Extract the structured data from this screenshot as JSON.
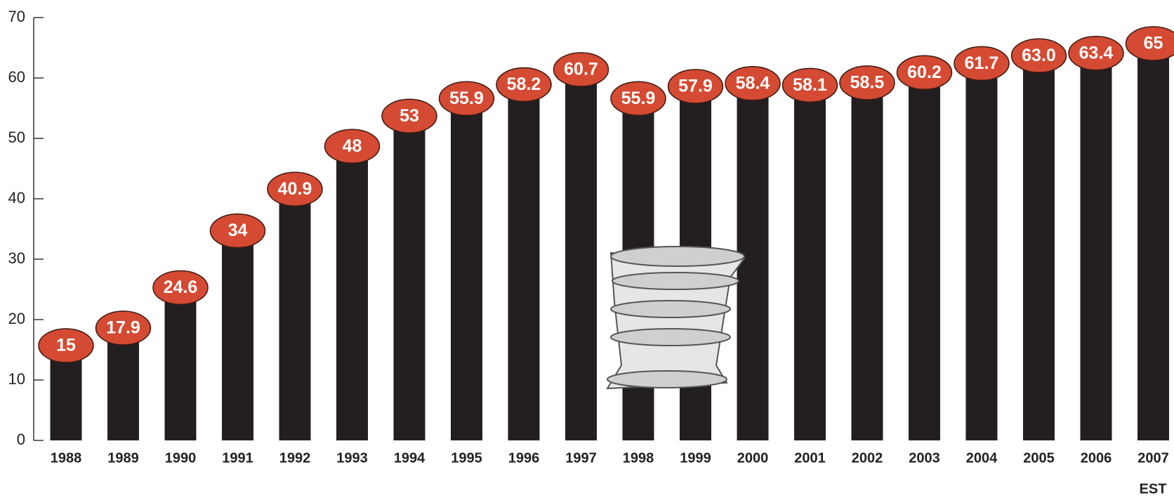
{
  "chart_data": {
    "type": "bar",
    "categories": [
      "1988",
      "1989",
      "1990",
      "1991",
      "1992",
      "1993",
      "1994",
      "1995",
      "1996",
      "1997",
      "1998",
      "1999",
      "2000",
      "2001",
      "2002",
      "2003",
      "2004",
      "2005",
      "2006",
      "2007"
    ],
    "values": [
      15,
      17.9,
      24.6,
      34,
      40.9,
      48,
      53,
      55.9,
      58.2,
      60.7,
      55.9,
      57.9,
      58.4,
      58.1,
      58.5,
      60.2,
      61.7,
      63.0,
      63.4,
      65
    ],
    "value_labels": [
      "15",
      "17.9",
      "24.6",
      "34",
      "40.9",
      "48",
      "53",
      "55.9",
      "58.2",
      "60.7",
      "55.9",
      "57.9",
      "58.4",
      "58.1",
      "58.5",
      "60.2",
      "61.7",
      "63.0",
      "63.4",
      "65"
    ],
    "annotation": "EST",
    "color": "#231f20",
    "label_color": "#d44a32",
    "ylim": [
      0,
      70
    ],
    "yticks": [
      0,
      10,
      20,
      30,
      40,
      50,
      60,
      70
    ],
    "grid": false
  }
}
